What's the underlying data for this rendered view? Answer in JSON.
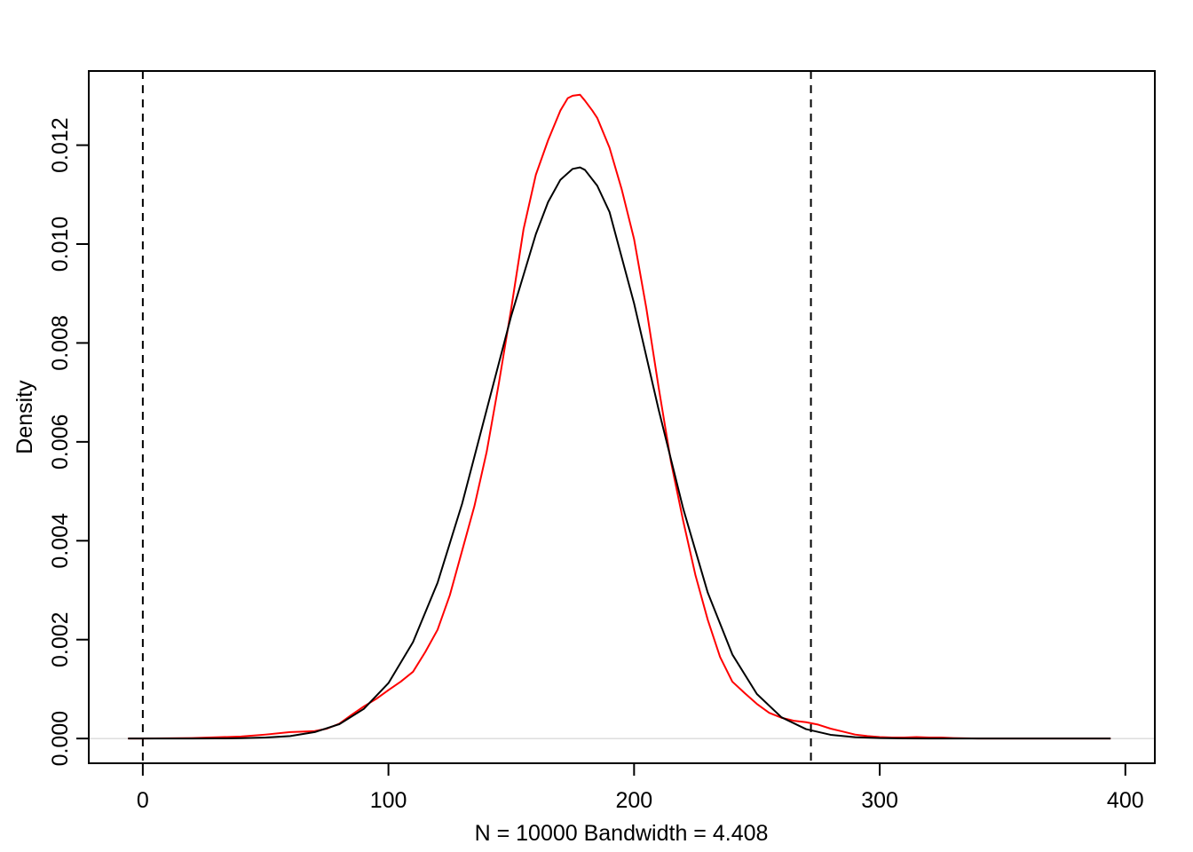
{
  "chart_data": {
    "type": "line",
    "title": "",
    "xlabel": "N = 10000   Bandwidth = 4.408",
    "ylabel": "Density",
    "xlim": [
      -22,
      412
    ],
    "ylim": [
      -0.0005,
      0.0135
    ],
    "x_ticks": [
      "0",
      "100",
      "200",
      "300",
      "400"
    ],
    "y_ticks": [
      "0.000",
      "0.002",
      "0.004",
      "0.006",
      "0.008",
      "0.010",
      "0.012"
    ],
    "series": [
      {
        "color": "#ff0000",
        "style": "solid",
        "x": [
          -6,
          0,
          20,
          40,
          50,
          60,
          65,
          70,
          75,
          80,
          85,
          90,
          95,
          100,
          105,
          110,
          115,
          120,
          125,
          130,
          135,
          140,
          145,
          150,
          155,
          160,
          165,
          170,
          173,
          175,
          178,
          180,
          183,
          185,
          190,
          195,
          200,
          205,
          210,
          215,
          220,
          225,
          230,
          235,
          240,
          245,
          250,
          255,
          260,
          265,
          270,
          275,
          280,
          285,
          290,
          295,
          300,
          305,
          310,
          315,
          320,
          325,
          330,
          340,
          360,
          394
        ],
        "y": [
          0,
          0,
          1e-05,
          4e-05,
          8e-05,
          0.00013,
          0.00014,
          0.00015,
          0.0002,
          0.0003,
          0.00048,
          0.00065,
          0.0008,
          0.00098,
          0.00115,
          0.00135,
          0.00175,
          0.0022,
          0.0029,
          0.0038,
          0.0047,
          0.0058,
          0.0072,
          0.0087,
          0.0103,
          0.0114,
          0.0121,
          0.0127,
          0.01295,
          0.013,
          0.01302,
          0.0129,
          0.0127,
          0.01255,
          0.01195,
          0.0111,
          0.0101,
          0.0087,
          0.0071,
          0.0056,
          0.0044,
          0.0033,
          0.0024,
          0.00165,
          0.00115,
          0.00092,
          0.0007,
          0.00052,
          0.00042,
          0.00036,
          0.00033,
          0.00028,
          0.0002,
          0.00014,
          8e-05,
          5e-05,
          3e-05,
          2e-05,
          2e-05,
          3e-05,
          2e-05,
          2e-05,
          1e-05,
          0,
          0,
          0
        ]
      },
      {
        "color": "#000000",
        "style": "solid",
        "x": [
          -6,
          0,
          10,
          20,
          30,
          40,
          50,
          60,
          70,
          80,
          90,
          100,
          110,
          120,
          130,
          140,
          150,
          160,
          165,
          170,
          175,
          178,
          180,
          185,
          190,
          200,
          210,
          220,
          230,
          240,
          250,
          260,
          270,
          280,
          290,
          300,
          310,
          320,
          330,
          340,
          350,
          360,
          370,
          380,
          394
        ],
        "y": [
          0,
          0,
          0,
          0,
          2e-06,
          6e-06,
          2e-05,
          5e-05,
          0.00013,
          0.00029,
          0.0006,
          0.00112,
          0.00195,
          0.00315,
          0.00475,
          0.00665,
          0.00855,
          0.0102,
          0.01085,
          0.0113,
          0.01152,
          0.01155,
          0.0115,
          0.01118,
          0.01065,
          0.0088,
          0.00665,
          0.00465,
          0.00295,
          0.0017,
          0.0009,
          0.00043,
          0.00019,
          7.5e-05,
          2.7e-05,
          9e-06,
          3e-06,
          1e-06,
          0,
          0,
          0,
          0,
          0,
          0,
          0
        ]
      }
    ],
    "vertical_lines": [
      {
        "x": 0,
        "style": "dashed",
        "color": "#000000"
      },
      {
        "x": 272,
        "style": "dashed",
        "color": "#000000"
      }
    ],
    "horizontal_lines": [
      {
        "y": 0,
        "color": "#cccccc"
      }
    ],
    "grid": false,
    "legend": "none"
  }
}
